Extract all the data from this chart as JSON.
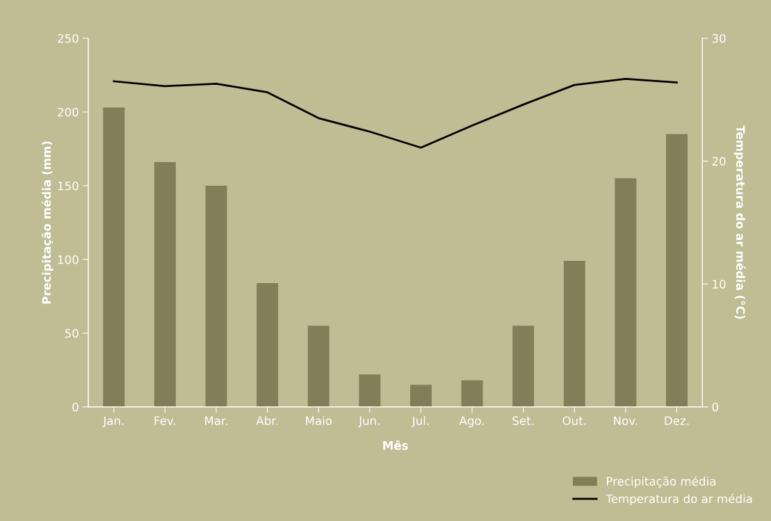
{
  "chart_data": {
    "type": "bar",
    "categories": [
      "Jan.",
      "Fev.",
      "Mar.",
      "Abr.",
      "Maio",
      "Jun.",
      "Jul.",
      "Ago.",
      "Set.",
      "Out.",
      "Nov.",
      "Dez."
    ],
    "xlabel": "Mês",
    "ylabel": "Precipitação média (mm)",
    "y2label": "Temperatura do ar média (°C)",
    "series": [
      {
        "name": "Precipitação média",
        "color": "#817e58",
        "values": [
          203,
          166,
          150,
          84,
          55,
          22,
          15,
          18,
          55,
          99,
          155,
          185
        ]
      },
      {
        "name": "Temperatura do ar média",
        "type": "line",
        "axis": "y2",
        "color": "#000000",
        "values": [
          26.5,
          26.1,
          26.3,
          25.6,
          23.5,
          22.4,
          21.1,
          22.9,
          24.6,
          26.2,
          26.7,
          26.4
        ]
      }
    ],
    "ylim": [
      0,
      250
    ],
    "yticks": [
      0,
      50,
      100,
      150,
      200,
      250
    ],
    "y2lim": [
      0,
      30
    ],
    "y2ticks": [
      0,
      10,
      20,
      30
    ],
    "grid": false,
    "legend": "bottom right",
    "marker": "none",
    "line_style": "solid"
  }
}
